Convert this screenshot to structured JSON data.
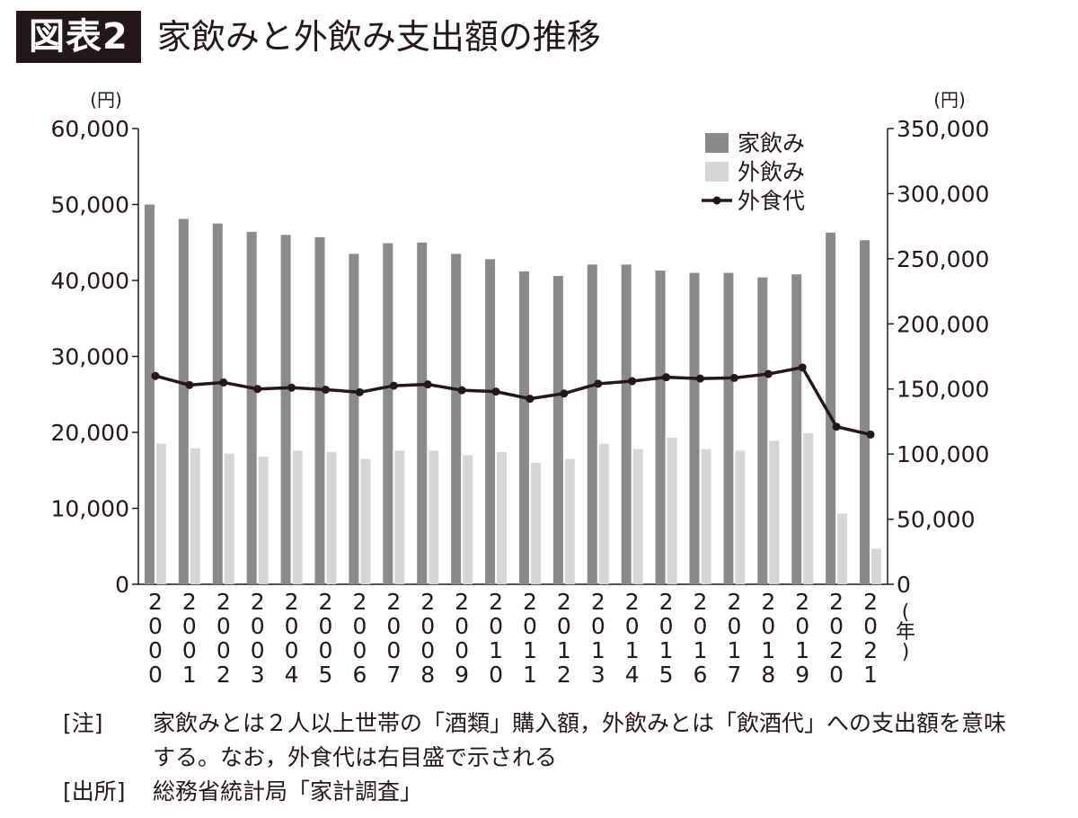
{
  "figure": {
    "label": "図表2",
    "title": "家飲みと外飲み支出額の推移"
  },
  "chart_data": {
    "type": "bar",
    "title": "家飲みと外飲み支出額の推移",
    "left_unit": "(円)",
    "right_unit": "(円)",
    "x_unit": "(年)",
    "categories": [
      "2000",
      "2001",
      "2002",
      "2003",
      "2004",
      "2005",
      "2006",
      "2007",
      "2008",
      "2009",
      "2010",
      "2011",
      "2012",
      "2013",
      "2014",
      "2015",
      "2016",
      "2017",
      "2018",
      "2019",
      "2020",
      "2021"
    ],
    "ylim_left": [
      0,
      60000
    ],
    "yticks_left": [
      "0",
      "10,000",
      "20,000",
      "30,000",
      "40,000",
      "50,000",
      "60,000"
    ],
    "ylim_right": [
      0,
      350000
    ],
    "yticks_right": [
      "0",
      "50,000",
      "100,000",
      "150,000",
      "200,000",
      "250,000",
      "300,000",
      "350,000"
    ],
    "series": [
      {
        "name": "家飲み",
        "type": "bar",
        "axis": "left",
        "color": "#8a8a8a",
        "values": [
          50000,
          48100,
          47500,
          46400,
          46000,
          45700,
          43500,
          44900,
          45000,
          43500,
          42800,
          41200,
          40600,
          42100,
          42100,
          41300,
          41000,
          41000,
          40400,
          40800,
          46300,
          45300
        ]
      },
      {
        "name": "外飲み",
        "type": "bar",
        "axis": "left",
        "color": "#d6d6d6",
        "values": [
          18500,
          17900,
          17200,
          16800,
          17600,
          17400,
          16500,
          17600,
          17600,
          17000,
          17400,
          16000,
          16500,
          18500,
          17800,
          19300,
          17800,
          17600,
          18900,
          19900,
          9300,
          4700
        ]
      },
      {
        "name": "外食代",
        "type": "line",
        "axis": "right",
        "color": "#231815",
        "values": [
          160000,
          153000,
          155000,
          150000,
          151000,
          149500,
          147500,
          152500,
          153500,
          149000,
          148000,
          142500,
          146500,
          154000,
          156000,
          159000,
          158000,
          158500,
          161500,
          166500,
          121000,
          115000
        ]
      }
    ],
    "grid": false,
    "legend_position": "top-right"
  },
  "notes": [
    {
      "label": "[注]",
      "text": "家飲みとは２人以上世帯の「酒類」購入額，外飲みとは「飲酒代」への支出額を意味する。なお，外食代は右目盛で示される"
    },
    {
      "label": "[出所]",
      "text": "総務省統計局「家計調査」"
    }
  ]
}
